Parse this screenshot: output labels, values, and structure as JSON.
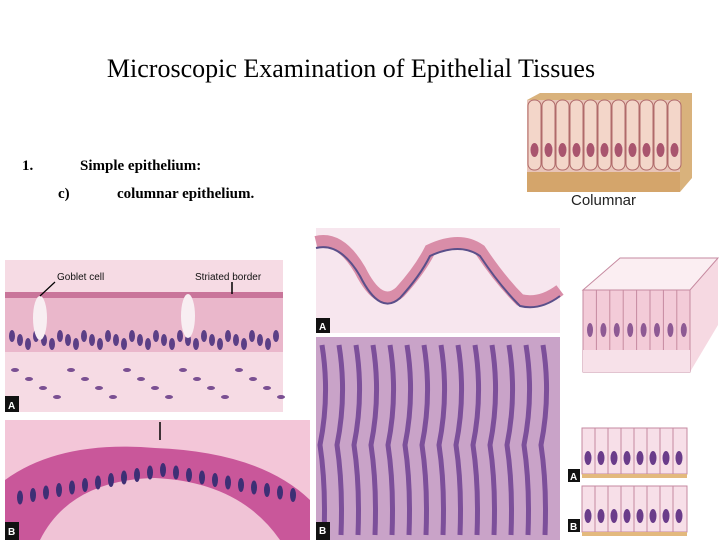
{
  "title": "Microscopic Examination of Epithelial Tissues",
  "outline": {
    "items": [
      {
        "number": "1.",
        "text": "Simple epithelium:"
      },
      {
        "number": "c)",
        "text": "columnar epithelium."
      }
    ]
  },
  "figures": {
    "diagram": {
      "caption": "Columnar"
    },
    "micrograph_left": {
      "labels": [
        "Goblet cell",
        "Striated border"
      ],
      "panels": [
        "A",
        "B"
      ]
    },
    "micrograph_middle": {
      "panels": [
        "A",
        "B"
      ]
    },
    "drawing_right": {
      "panels": [
        "A",
        "B"
      ]
    }
  }
}
